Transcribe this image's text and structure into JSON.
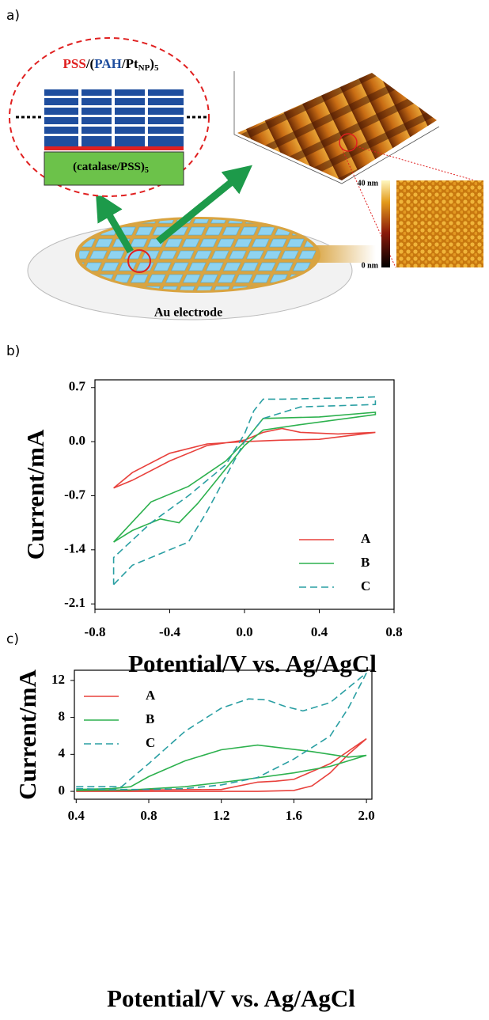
{
  "panel_labels": [
    "a)",
    "b)",
    "c)"
  ],
  "figure_a": {
    "film_label": [
      "PSS",
      "/(",
      "PAH",
      "/Pt",
      "NP",
      ")",
      "5"
    ],
    "base_label": [
      "(catalase/PSS)",
      "5"
    ],
    "electrode_label": "Au electrode",
    "colorbar_max": "40 nm",
    "colorbar_min": "0 nm"
  },
  "chart_data": [
    {
      "type": "line",
      "xlabel": "Potential/V vs. Ag/AgCl",
      "ylabel": "Current/mA",
      "xlim": [
        -0.8,
        0.8
      ],
      "ylim": [
        -2.17,
        0.8
      ],
      "xticks": [
        -0.8,
        -0.4,
        {
          "value": 0,
          "label": "0.0"
        },
        0.4,
        0.8
      ],
      "yticks": [
        0.7,
        {
          "value": 0,
          "label": "0.0"
        },
        -0.7,
        -1.4,
        -2.1
      ],
      "legend": "lower right",
      "series": [
        {
          "name": "A",
          "color": "#e8413c",
          "linestyle": "solid",
          "x": [
            -0.7,
            -0.6,
            -0.4,
            -0.2,
            0,
            0.2,
            0.4,
            0.7,
            0.5,
            0.3,
            0.2,
            0.1,
            0,
            -0.2,
            -0.4,
            -0.6,
            -0.7
          ],
          "values": [
            -0.6,
            -0.4,
            -0.15,
            -0.03,
            0,
            0.02,
            0.03,
            0.12,
            0.1,
            0.12,
            0.17,
            0.12,
            0.02,
            -0.05,
            -0.25,
            -0.5,
            -0.6
          ]
        },
        {
          "name": "B",
          "color": "#2db14e",
          "linestyle": "solid",
          "x": [
            -0.7,
            -0.6,
            -0.45,
            -0.35,
            -0.25,
            -0.1,
            0,
            0.1,
            0.3,
            0.7,
            0.7,
            0.4,
            0.1,
            0,
            -0.1,
            -0.3,
            -0.5,
            -0.7
          ],
          "values": [
            -1.3,
            -1.15,
            -1.0,
            -1.05,
            -0.8,
            -0.35,
            -0.05,
            0.15,
            0.22,
            0.35,
            0.38,
            0.32,
            0.3,
            0,
            -0.25,
            -0.58,
            -0.78,
            -1.3
          ]
        },
        {
          "name": "C",
          "color": "#2a9fa3",
          "linestyle": "dashed",
          "x": [
            -0.7,
            -0.6,
            -0.4,
            -0.3,
            -0.2,
            -0.1,
            0,
            0.1,
            0.3,
            0.7,
            0.7,
            0.6,
            0.2,
            0.1,
            0.05,
            0,
            -0.1,
            -0.3,
            -0.5,
            -0.7,
            -0.7
          ],
          "values": [
            -1.85,
            -1.6,
            -1.4,
            -1.3,
            -0.9,
            -0.45,
            0,
            0.3,
            0.45,
            0.48,
            0.58,
            0.57,
            0.55,
            0.55,
            0.4,
            0.1,
            -0.3,
            -0.7,
            -1.05,
            -1.5,
            -1.85
          ]
        }
      ]
    },
    {
      "type": "line",
      "xlabel": "Potential/V vs. Ag/AgCl",
      "ylabel": "Current/mA",
      "xlim": [
        0.39,
        2.03
      ],
      "ylim": [
        -0.85,
        13.1
      ],
      "xticks": [
        0.4,
        0.8,
        1.2,
        1.6,
        {
          "value": 2,
          "label": "2.0"
        }
      ],
      "yticks": [
        0,
        4,
        8,
        12
      ],
      "legend": "upper left",
      "series": [
        {
          "name": "A",
          "color": "#e8413c",
          "linestyle": "solid",
          "x": [
            0.4,
            1.2,
            1.4,
            1.5,
            1.6,
            1.8,
            2.0,
            1.9,
            1.8,
            1.7,
            1.6,
            1.4,
            0.6,
            0.4
          ],
          "values": [
            0.1,
            0.2,
            1.0,
            1.1,
            1.3,
            3,
            5.7,
            4,
            2,
            0.6,
            0.1,
            0,
            0,
            0
          ]
        },
        {
          "name": "B",
          "color": "#2db14e",
          "linestyle": "solid",
          "x": [
            0.4,
            0.7,
            1.0,
            1.3,
            1.6,
            1.8,
            2.0,
            1.9,
            1.7,
            1.4,
            1.2,
            1.0,
            0.8,
            0.7,
            0.6,
            0.4
          ],
          "values": [
            0.1,
            0.15,
            0.5,
            1.2,
            2.0,
            2.7,
            3.9,
            3.7,
            4.3,
            5.0,
            4.5,
            3.3,
            1.6,
            0.5,
            0.3,
            0.2
          ]
        },
        {
          "name": "C",
          "color": "#2a9fa3",
          "linestyle": "dashed",
          "x": [
            0.4,
            0.65,
            0.8,
            1.0,
            1.2,
            1.35,
            1.45,
            1.55,
            1.65,
            1.8,
            2.0,
            1.9,
            1.8,
            1.6,
            1.4,
            1.2,
            1.0,
            0.8,
            0.6,
            0.4
          ],
          "values": [
            0.5,
            0.5,
            3.0,
            6.5,
            9.0,
            10.0,
            9.9,
            9.2,
            8.7,
            9.6,
            12.8,
            9,
            6,
            3.5,
            1.5,
            0.7,
            0.3,
            0.2,
            0.2,
            0.3
          ]
        }
      ]
    }
  ]
}
